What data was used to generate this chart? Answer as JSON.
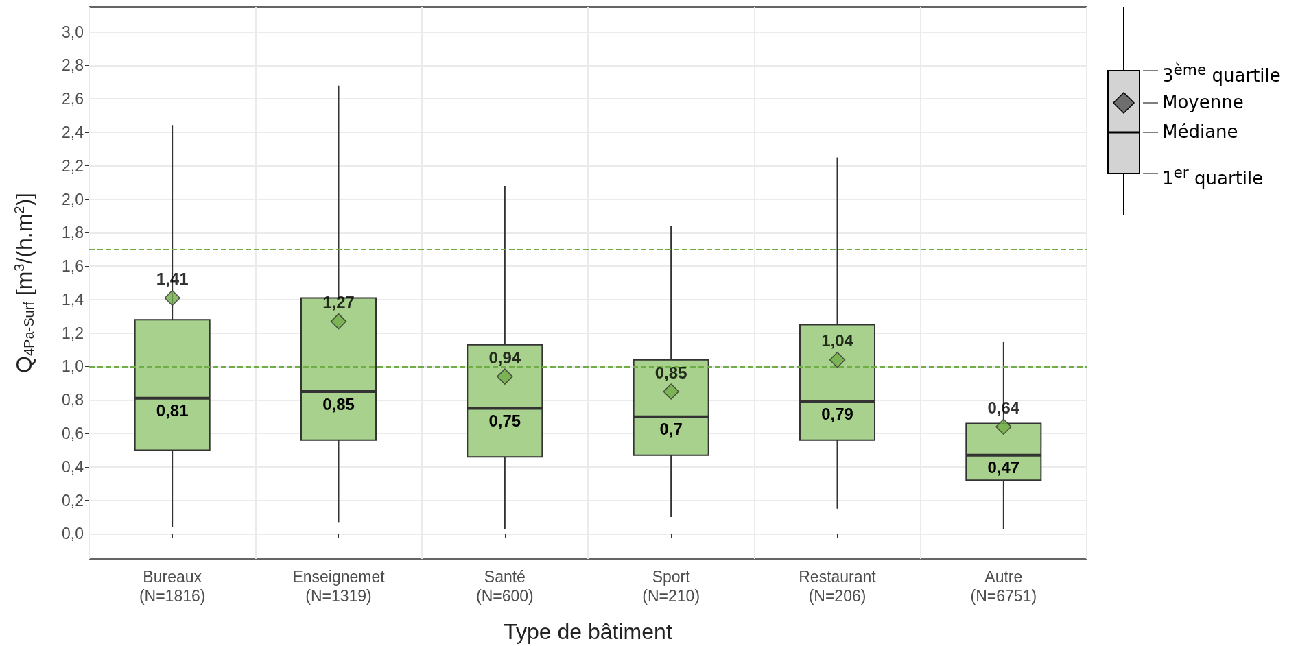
{
  "chart_data": {
    "type": "box",
    "xlabel": "Type de bâtiment",
    "ylabel": "Q$_{4Pa-Surf}$ [m$^{3}$/(h.m$^{2}$)]",
    "categories": [
      "Bureaux\n(N=1816)",
      "Enseignemet\n(N=1319)",
      "Santé\n(N=600)",
      "Sport\n(N=210)",
      "Restaurant\n(N=206)",
      "Autre\n(N=6751)"
    ],
    "series": [
      {
        "color": "#a9d18e",
        "value_labels": [
          "0,81",
          "0,85",
          "0,75",
          "0,7",
          "0,79",
          "0,47"
        ],
        "boxes": [
          {
            "low": 0.04,
            "q1": 0.5,
            "median": 0.81,
            "q3": 1.28,
            "high": 2.44
          },
          {
            "low": 0.07,
            "q1": 0.56,
            "median": 0.85,
            "q3": 1.41,
            "high": 2.68
          },
          {
            "low": 0.03,
            "q1": 0.46,
            "median": 0.75,
            "q3": 1.13,
            "high": 2.08
          },
          {
            "low": 0.1,
            "q1": 0.47,
            "median": 0.7,
            "q3": 1.04,
            "high": 1.84
          },
          {
            "low": 0.15,
            "q1": 0.56,
            "median": 0.79,
            "q3": 1.25,
            "high": 2.25
          },
          {
            "low": 0.03,
            "q1": 0.32,
            "median": 0.47,
            "q3": 0.66,
            "high": 1.15
          }
        ]
      },
      {
        "type": "scatter",
        "color": "#70ad47",
        "x": [
          "Bureaux\n(N=1816)",
          "Enseignemet\n(N=1319)",
          "Santé\n(N=600)",
          "Sport\n(N=210)",
          "Restaurant\n(N=206)",
          "Autre\n(N=6751)"
        ],
        "values": [
          1.41,
          1.27,
          0.94,
          0.85,
          1.04,
          0.64
        ],
        "value_labels": [
          "1,41",
          "1,27",
          "0,94",
          "0,85",
          "1,04",
          "0,64"
        ]
      }
    ],
    "marker": "diamond",
    "grid": true,
    "ylim": [
      -0.15,
      3.15
    ],
    "yticks": [
      {
        "value": 0,
        "label": "0,0"
      },
      {
        "value": 0.2,
        "label": "0,2"
      },
      {
        "value": 0.4,
        "label": "0,4"
      },
      {
        "value": 0.6,
        "label": "0,6"
      },
      {
        "value": 0.8,
        "label": "0,8"
      },
      {
        "value": 1,
        "label": "1,0"
      },
      {
        "value": 1.2,
        "label": "1,2"
      },
      {
        "value": 1.4,
        "label": "1,4"
      },
      {
        "value": 1.6,
        "label": "1,6"
      },
      {
        "value": 1.8,
        "label": "1,8"
      },
      {
        "value": 2,
        "label": "2,0"
      },
      {
        "value": 2.2,
        "label": "2,2"
      },
      {
        "value": 2.4,
        "label": "2,4"
      },
      {
        "value": 2.6,
        "label": "2,6"
      },
      {
        "value": 2.8,
        "label": "2,8"
      },
      {
        "value": 3,
        "label": "3,0"
      }
    ],
    "ref_lines": [
      {
        "axis": "y",
        "value": 1,
        "color": "#70ad47",
        "line_style": "dashed"
      },
      {
        "axis": "y",
        "value": 1.7,
        "color": "#70ad47",
        "line_style": "dashed"
      }
    ],
    "annotations": [
      "3$^{ème}$ quartile",
      "Moyenne",
      "Médiane",
      "1$^{er}$ quartile"
    ]
  }
}
